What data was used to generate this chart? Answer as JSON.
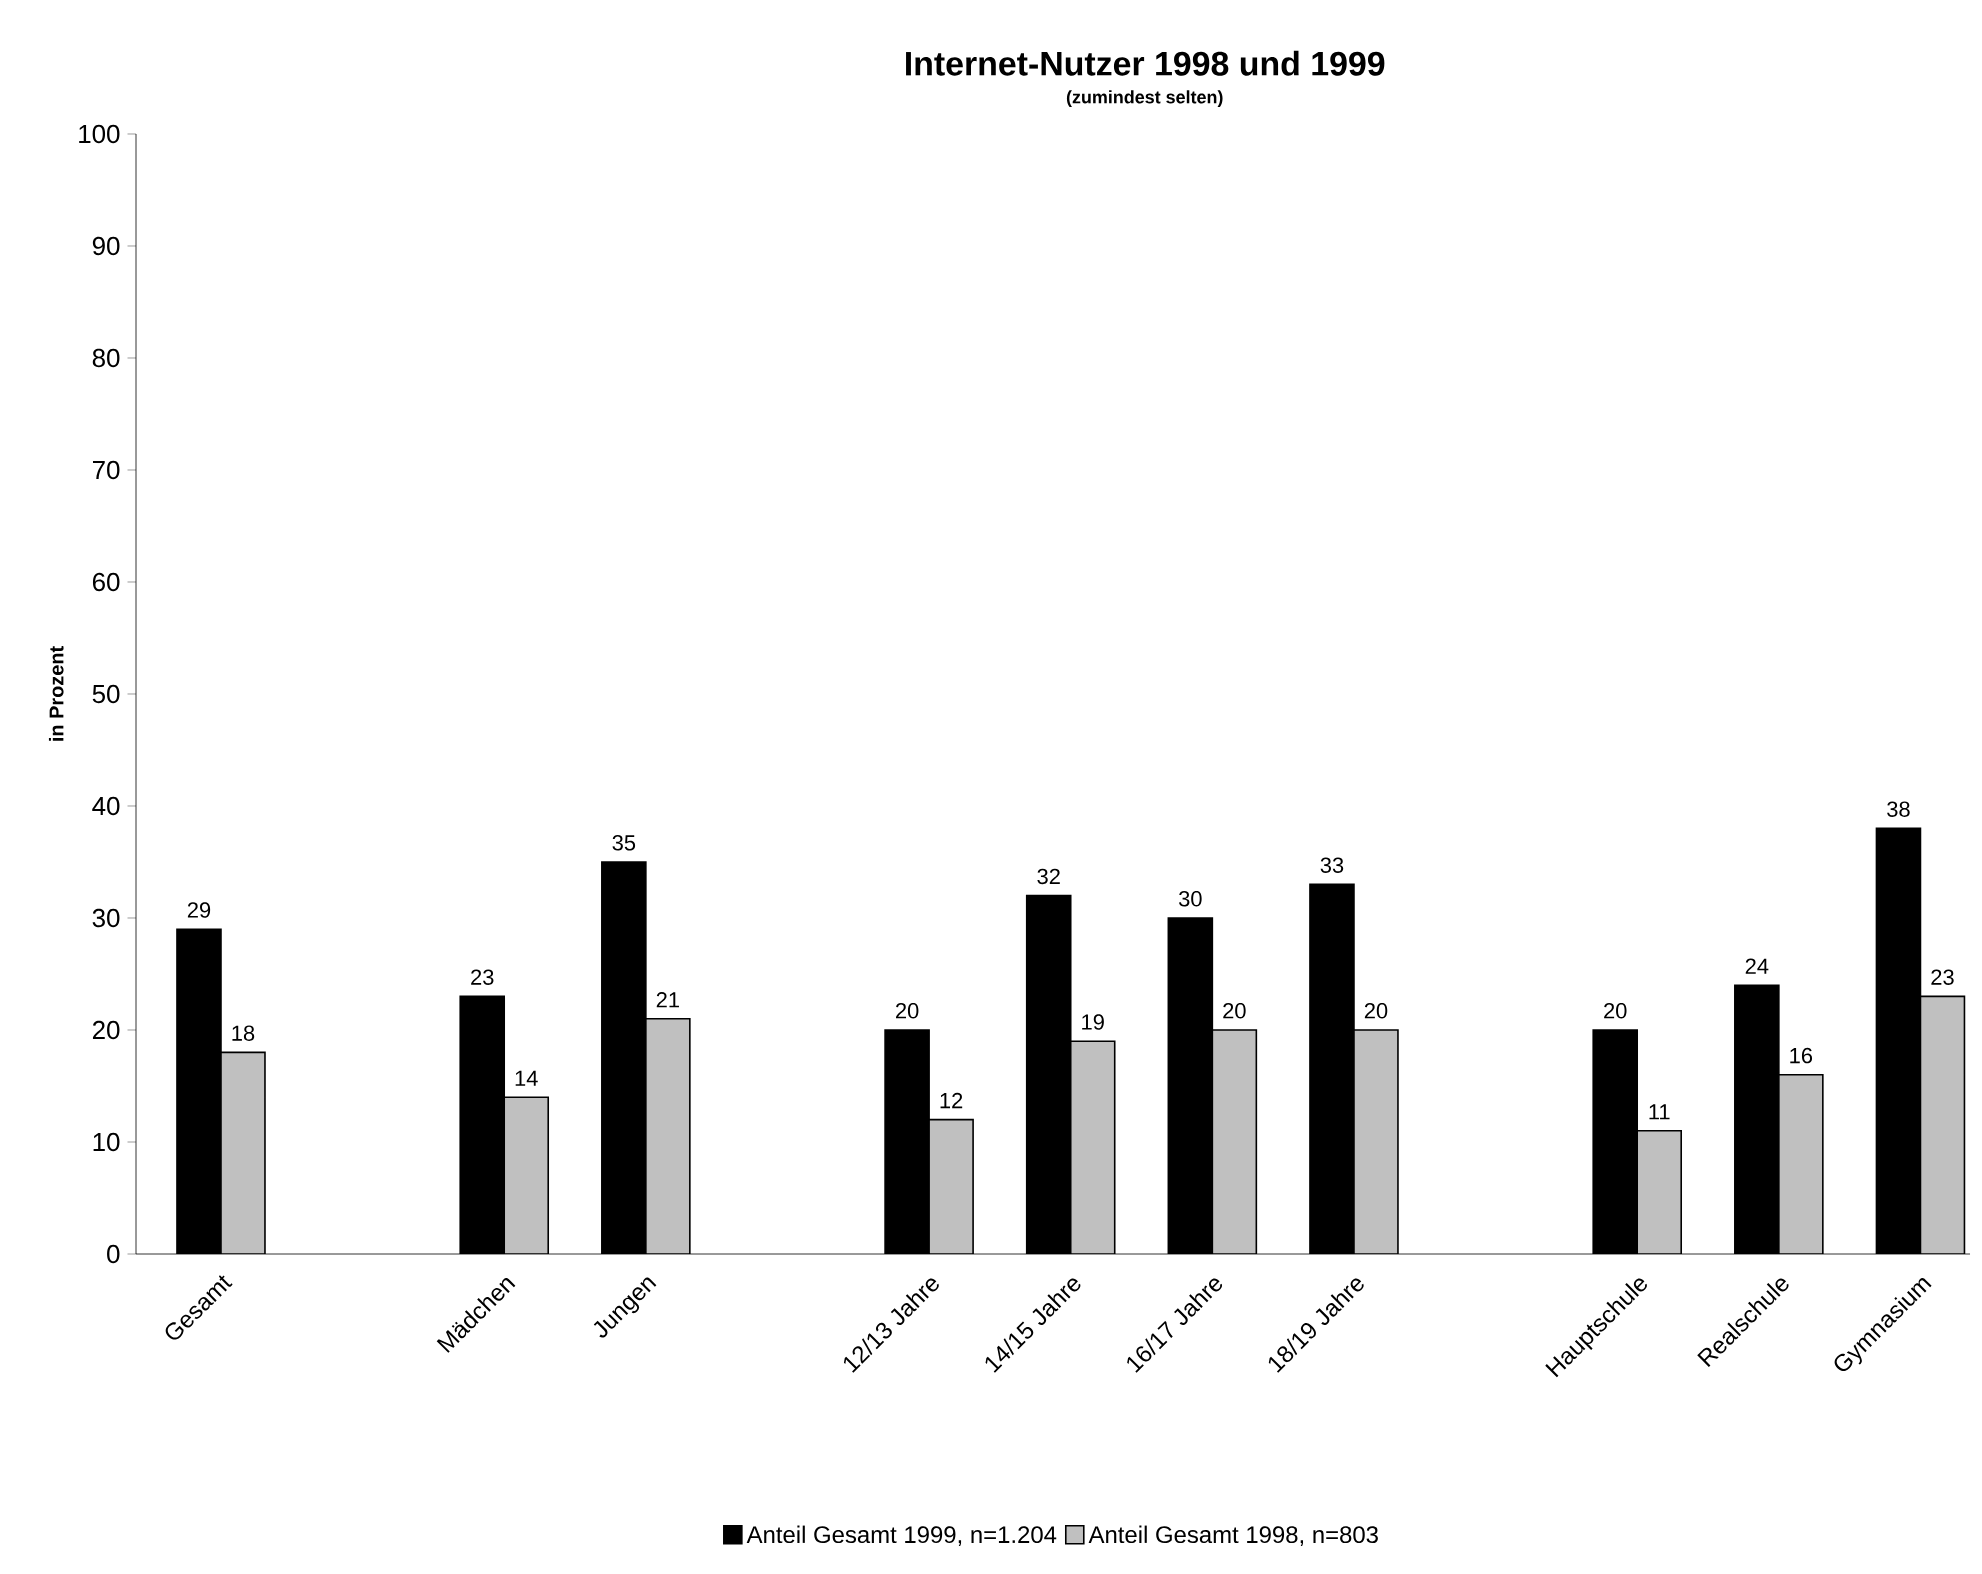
{
  "chart_data": {
    "type": "bar",
    "title": "Internet-Nutzer 1998 und 1999",
    "subtitle": "(zumindest selten)",
    "ylabel": "in Prozent",
    "categories": [
      "Gesamt",
      null,
      "Mädchen",
      "Jungen",
      null,
      "12/13 Jahre",
      "14/15 Jahre",
      "16/17 Jahre",
      "18/19 Jahre",
      null,
      "Hauptschule",
      "Realschule",
      "Gymnasium"
    ],
    "series": [
      {
        "name": "Anteil Gesamt 1999, n=1.204",
        "color": "#000000",
        "values": [
          29,
          null,
          23,
          35,
          null,
          20,
          32,
          30,
          33,
          null,
          20,
          24,
          38
        ]
      },
      {
        "name": "Anteil Gesamt 1998, n=803",
        "color": "#c0c0c0",
        "values": [
          18,
          null,
          14,
          21,
          null,
          12,
          19,
          20,
          20,
          null,
          11,
          16,
          23
        ]
      }
    ],
    "ylim": [
      0,
      100
    ],
    "yticks": [
      0,
      10,
      20,
      30,
      40,
      50,
      60,
      70,
      80,
      90,
      100
    ],
    "data_labels": true,
    "legend": "bottom",
    "grid": false
  }
}
